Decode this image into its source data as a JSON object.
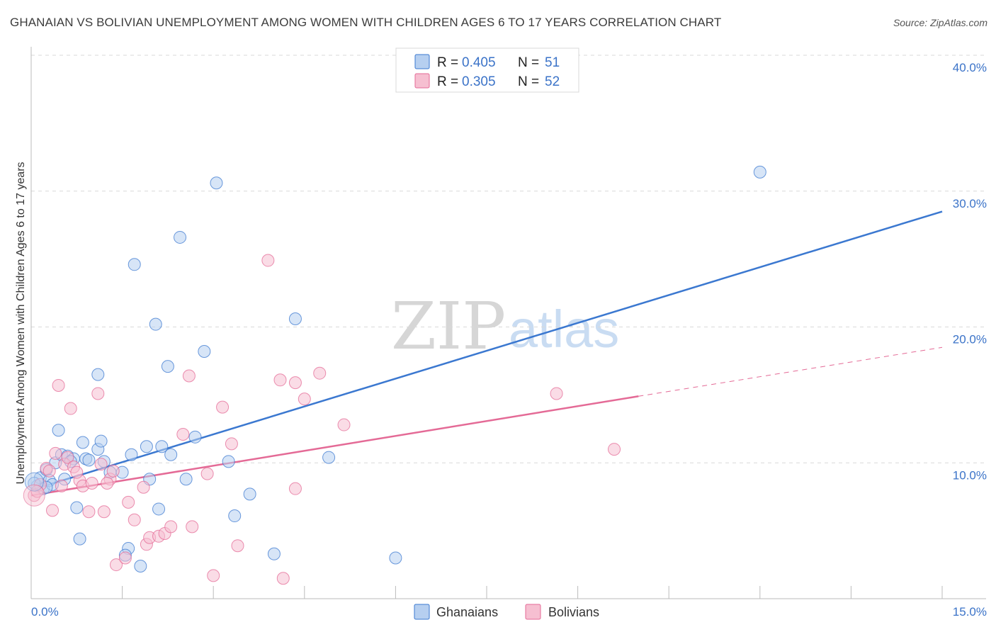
{
  "header": {
    "title": "GHANAIAN VS BOLIVIAN UNEMPLOYMENT AMONG WOMEN WITH CHILDREN AGES 6 TO 17 YEARS CORRELATION CHART",
    "source": "Source: ZipAtlas.com"
  },
  "watermark": {
    "part1": "ZIP",
    "part2": "atlas"
  },
  "legend": {
    "r_label": "R = ",
    "n_label": "N = ",
    "rows": [
      {
        "r": "0.405",
        "n": "51"
      },
      {
        "r": "0.305",
        "n": "52"
      }
    ]
  },
  "bottom_legend": [
    "Ghanaians",
    "Bolivians"
  ],
  "colors": {
    "blue": "#3b78d0",
    "blue_fill": "#b6cff0",
    "pink": "#e46a96",
    "pink_fill": "#f6bfd1",
    "tick": "#3b73c8"
  },
  "chart_data": {
    "type": "scatter",
    "title": "GHANAIAN VS BOLIVIAN UNEMPLOYMENT AMONG WOMEN WITH CHILDREN AGES 6 TO 17 YEARS CORRELATION CHART",
    "xlabel": "",
    "ylabel": "Unemployment Among Women with Children Ages 6 to 17 years",
    "xlim": [
      0,
      15
    ],
    "ylim": [
      0,
      40
    ],
    "x_tick_labels": [
      "0.0%",
      "15.0%"
    ],
    "y_tick_labels": [
      "10.0%",
      "20.0%",
      "30.0%",
      "40.0%"
    ],
    "y_ticks": [
      10,
      20,
      30,
      40
    ],
    "grid": true,
    "legend_position": "top-center",
    "series": [
      {
        "name": "Ghanaians",
        "r": 0.405,
        "n": 51,
        "trend": {
          "x": [
            0,
            15
          ],
          "y": [
            8.0,
            28.5
          ]
        },
        "points": [
          [
            0.1,
            8.3
          ],
          [
            0.15,
            8.9
          ],
          [
            0.2,
            8.1
          ],
          [
            0.25,
            9.5
          ],
          [
            0.3,
            8.7
          ],
          [
            0.35,
            8.4
          ],
          [
            0.4,
            10.0
          ],
          [
            0.45,
            12.4
          ],
          [
            0.5,
            10.6
          ],
          [
            0.55,
            8.8
          ],
          [
            0.6,
            10.5
          ],
          [
            0.7,
            10.3
          ],
          [
            0.75,
            6.7
          ],
          [
            0.85,
            11.5
          ],
          [
            0.9,
            10.3
          ],
          [
            0.95,
            10.2
          ],
          [
            1.1,
            11.0
          ],
          [
            1.15,
            11.6
          ],
          [
            1.2,
            10.1
          ],
          [
            1.3,
            9.3
          ],
          [
            1.1,
            16.5
          ],
          [
            0.8,
            4.4
          ],
          [
            1.6,
            3.7
          ],
          [
            1.55,
            3.2
          ],
          [
            1.5,
            9.3
          ],
          [
            1.65,
            10.6
          ],
          [
            1.7,
            24.6
          ],
          [
            1.8,
            2.4
          ],
          [
            1.9,
            11.2
          ],
          [
            1.95,
            8.8
          ],
          [
            2.05,
            20.2
          ],
          [
            2.1,
            6.6
          ],
          [
            2.15,
            11.2
          ],
          [
            2.25,
            17.1
          ],
          [
            2.3,
            10.6
          ],
          [
            2.45,
            26.6
          ],
          [
            2.55,
            8.8
          ],
          [
            2.7,
            11.9
          ],
          [
            2.85,
            18.2
          ],
          [
            3.05,
            30.6
          ],
          [
            3.25,
            10.1
          ],
          [
            3.35,
            6.1
          ],
          [
            3.6,
            7.7
          ],
          [
            4.0,
            3.3
          ],
          [
            4.35,
            20.6
          ],
          [
            4.9,
            10.4
          ],
          [
            6.0,
            3.0
          ],
          [
            12.0,
            31.4
          ],
          [
            0.05,
            8.5
          ],
          [
            0.25,
            8.2
          ],
          [
            0.65,
            10.1
          ]
        ]
      },
      {
        "name": "Bolivians",
        "r": 0.305,
        "n": 52,
        "trend": {
          "x": [
            0,
            10.0
          ],
          "y": [
            7.6,
            14.9
          ]
        },
        "trend_extension": {
          "x": [
            10.0,
            15
          ],
          "y": [
            14.9,
            18.5
          ]
        },
        "points": [
          [
            0.05,
            7.6
          ],
          [
            0.15,
            8.4
          ],
          [
            0.25,
            9.6
          ],
          [
            0.35,
            6.5
          ],
          [
            0.4,
            10.7
          ],
          [
            0.45,
            15.7
          ],
          [
            0.5,
            8.3
          ],
          [
            0.55,
            9.9
          ],
          [
            0.6,
            10.4
          ],
          [
            0.65,
            14.0
          ],
          [
            0.7,
            9.7
          ],
          [
            0.8,
            8.7
          ],
          [
            0.85,
            8.3
          ],
          [
            0.95,
            6.4
          ],
          [
            1.0,
            8.5
          ],
          [
            1.1,
            15.1
          ],
          [
            1.15,
            9.9
          ],
          [
            1.2,
            6.4
          ],
          [
            1.3,
            8.8
          ],
          [
            1.35,
            9.4
          ],
          [
            1.4,
            2.5
          ],
          [
            1.55,
            3.0
          ],
          [
            1.6,
            7.1
          ],
          [
            1.7,
            5.8
          ],
          [
            1.85,
            8.2
          ],
          [
            1.9,
            4.0
          ],
          [
            1.95,
            4.5
          ],
          [
            2.1,
            4.6
          ],
          [
            2.2,
            4.8
          ],
          [
            2.3,
            5.3
          ],
          [
            2.5,
            12.1
          ],
          [
            2.6,
            16.4
          ],
          [
            2.65,
            5.3
          ],
          [
            2.9,
            9.2
          ],
          [
            3.0,
            1.7
          ],
          [
            3.15,
            14.1
          ],
          [
            3.3,
            11.4
          ],
          [
            3.4,
            3.9
          ],
          [
            3.9,
            24.9
          ],
          [
            4.1,
            16.1
          ],
          [
            4.35,
            15.9
          ],
          [
            4.5,
            14.7
          ],
          [
            4.35,
            8.1
          ],
          [
            4.75,
            16.6
          ],
          [
            5.15,
            12.8
          ],
          [
            8.65,
            15.1
          ],
          [
            9.6,
            11.0
          ],
          [
            4.15,
            1.5
          ],
          [
            0.1,
            7.9
          ],
          [
            0.3,
            9.4
          ],
          [
            0.75,
            9.3
          ],
          [
            1.25,
            8.5
          ]
        ]
      }
    ]
  }
}
